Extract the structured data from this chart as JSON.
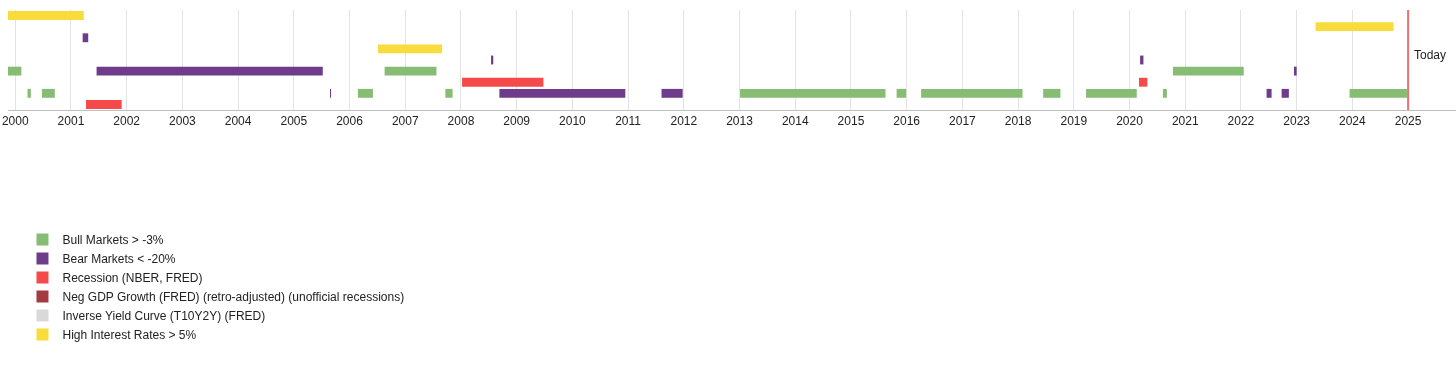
{
  "chart_data": {
    "type": "bar",
    "orientation": "horizontal",
    "categories": [
      null,
      null,
      null,
      null,
      null,
      null,
      null,
      null,
      null
    ],
    "xlim": [
      1999.87,
      2025.86
    ],
    "xticks": [
      2000,
      2001,
      2002,
      2003,
      2004,
      2005,
      2006,
      2007,
      2008,
      2009,
      2010,
      2011,
      2012,
      2013,
      2014,
      2015,
      2016,
      2017,
      2018,
      2019,
      2020,
      2021,
      2022,
      2023,
      2024,
      2025
    ],
    "grid": "x",
    "tick_labels": "x",
    "legend": "bottom left",
    "ref_lines": [
      {
        "axis": "x",
        "value": 2025.0,
        "label": "Today",
        "color": "#f07070"
      }
    ],
    "series": [
      {
        "name": "Bull Markets > -3%",
        "color": "#87bc74",
        "base": [
          null,
          null,
          null,
          null,
          null,
          1999.87,
          null,
          2000.22,
          null
        ],
        "values": [
          null,
          null,
          null,
          null,
          null,
          0.24,
          null,
          0.06,
          null
        ]
      },
      {
        "color": "#87bc74",
        "base": [
          null,
          null,
          null,
          null,
          null,
          2006.63,
          null,
          2000.48,
          null
        ],
        "values": [
          null,
          null,
          null,
          null,
          null,
          0.93,
          null,
          0.23,
          null
        ]
      },
      {
        "color": "#87bc74",
        "base": [
          null,
          null,
          null,
          null,
          null,
          2020.78,
          null,
          2006.15,
          null
        ],
        "values": [
          null,
          null,
          null,
          null,
          null,
          1.27,
          null,
          0.27,
          null
        ]
      },
      {
        "color": "#87bc74",
        "base": [
          null,
          null,
          null,
          null,
          null,
          null,
          null,
          2007.72,
          null
        ],
        "values": [
          null,
          null,
          null,
          null,
          null,
          null,
          null,
          0.13,
          null
        ]
      },
      {
        "color": "#87bc74",
        "base": [
          null,
          null,
          null,
          null,
          null,
          null,
          null,
          2013.01,
          null
        ],
        "values": [
          null,
          null,
          null,
          null,
          null,
          null,
          null,
          2.61,
          null
        ]
      },
      {
        "color": "#87bc74",
        "base": [
          null,
          null,
          null,
          null,
          null,
          null,
          null,
          2015.82,
          null
        ],
        "values": [
          null,
          null,
          null,
          null,
          null,
          null,
          null,
          0.17,
          null
        ]
      },
      {
        "color": "#87bc74",
        "base": [
          null,
          null,
          null,
          null,
          null,
          null,
          null,
          2016.26,
          null
        ],
        "values": [
          null,
          null,
          null,
          null,
          null,
          null,
          null,
          1.82,
          null
        ]
      },
      {
        "color": "#87bc74",
        "base": [
          null,
          null,
          null,
          null,
          null,
          null,
          null,
          2018.45,
          null
        ],
        "values": [
          null,
          null,
          null,
          null,
          null,
          null,
          null,
          0.31,
          null
        ]
      },
      {
        "color": "#87bc74",
        "base": [
          null,
          null,
          null,
          null,
          null,
          null,
          null,
          2019.22,
          null
        ],
        "values": [
          null,
          null,
          null,
          null,
          null,
          null,
          null,
          0.91,
          null
        ]
      },
      {
        "color": "#87bc74",
        "base": [
          null,
          null,
          null,
          null,
          null,
          null,
          null,
          2020.6,
          null
        ],
        "values": [
          null,
          null,
          null,
          null,
          null,
          null,
          null,
          0.07,
          null
        ]
      },
      {
        "color": "#87bc74",
        "base": [
          null,
          null,
          null,
          null,
          null,
          null,
          null,
          2023.95,
          null
        ],
        "values": [
          null,
          null,
          null,
          null,
          null,
          null,
          null,
          1.03,
          null
        ]
      },
      {
        "name": "Bear Markets < -20%",
        "color": "#6f3c8c",
        "base": [
          null,
          null,
          2001.21,
          null,
          2008.54,
          2001.46,
          null,
          2005.65,
          null
        ],
        "values": [
          null,
          null,
          0.1,
          null,
          0.04,
          4.06,
          null,
          0.01,
          null
        ]
      },
      {
        "color": "#6f3c8c",
        "base": [
          null,
          null,
          null,
          null,
          2020.19,
          2022.97,
          null,
          2008.69,
          null
        ],
        "values": [
          null,
          null,
          null,
          null,
          0.06,
          0.03,
          null,
          2.26,
          null
        ]
      },
      {
        "color": "#6f3c8c",
        "base": [
          null,
          null,
          null,
          null,
          null,
          null,
          null,
          2011.6,
          null
        ],
        "values": [
          null,
          null,
          null,
          null,
          null,
          null,
          null,
          0.38,
          null
        ]
      },
      {
        "color": "#6f3c8c",
        "base": [
          null,
          null,
          null,
          null,
          null,
          null,
          null,
          2022.46,
          null
        ],
        "values": [
          null,
          null,
          null,
          null,
          null,
          null,
          null,
          0.09,
          null
        ]
      },
      {
        "color": "#6f3c8c",
        "base": [
          null,
          null,
          null,
          null,
          null,
          null,
          null,
          2022.73,
          null
        ],
        "values": [
          null,
          null,
          null,
          null,
          null,
          null,
          null,
          0.13,
          null
        ]
      },
      {
        "name": "Recession (NBER, FRED)",
        "color": "#f44a4a",
        "base": [
          null,
          null,
          null,
          null,
          null,
          null,
          2008.02,
          null,
          2001.27
        ],
        "values": [
          null,
          null,
          null,
          null,
          null,
          null,
          1.46,
          null,
          0.64
        ]
      },
      {
        "color": "#f44a4a",
        "base": [
          null,
          null,
          null,
          null,
          null,
          null,
          2020.17,
          null,
          null
        ],
        "values": [
          null,
          null,
          null,
          null,
          null,
          null,
          0.15,
          null,
          null
        ]
      },
      {
        "name": "Neg GDP Growth (FRED) (retro-adjusted) (unofficial recessions)",
        "color": "#a33c42",
        "values": [
          null,
          null,
          null,
          null,
          null,
          null,
          null,
          null,
          null
        ]
      },
      {
        "name": "Inverse Yield Curve (T10Y2Y) (FRED)",
        "color": "#d9d9d9",
        "values": [
          null,
          null,
          null,
          null,
          null,
          null,
          null,
          null,
          null
        ]
      },
      {
        "name": "High Interest Rates > 5%",
        "color": "#f7dc3b",
        "base": [
          1999.87,
          2023.34,
          null,
          2006.51,
          null,
          null,
          null,
          null,
          null
        ],
        "values": [
          1.36,
          1.4,
          null,
          1.15,
          null,
          null,
          null,
          null,
          null
        ]
      }
    ]
  }
}
